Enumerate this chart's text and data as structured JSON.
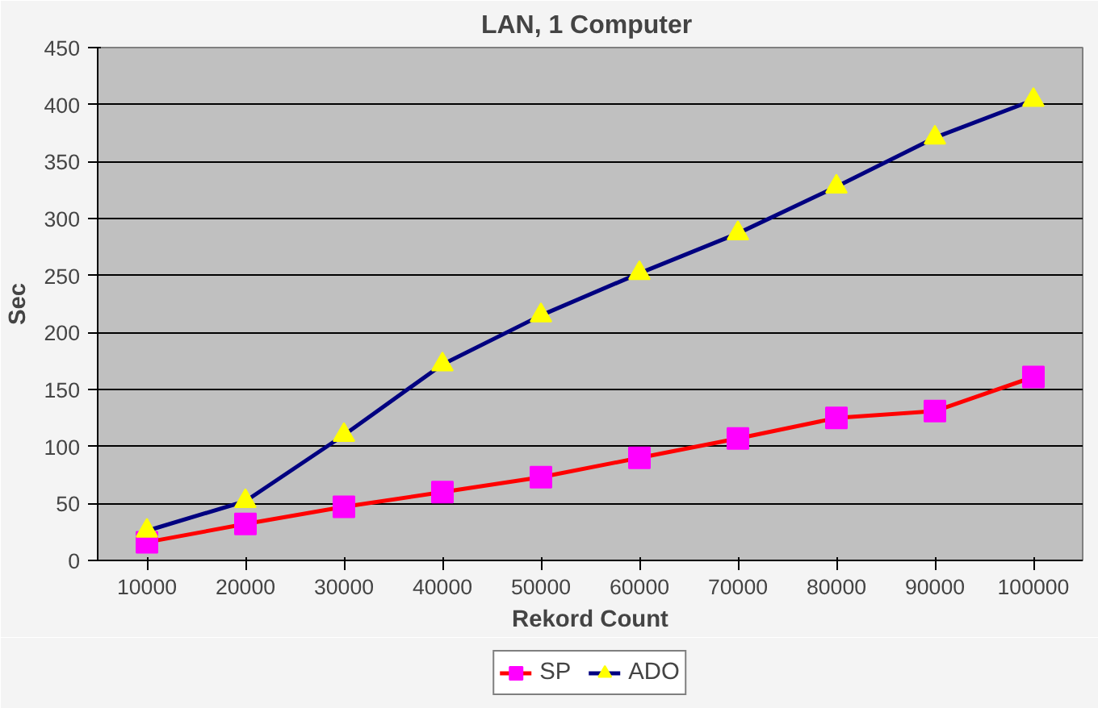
{
  "chart_data": {
    "type": "line",
    "title": "LAN,  1 Computer",
    "xlabel": "Rekord Count",
    "ylabel": "Sec",
    "categories": [
      "10000",
      "20000",
      "30000",
      "40000",
      "50000",
      "60000",
      "70000",
      "80000",
      "90000",
      "100000"
    ],
    "series": [
      {
        "name": "SP",
        "color": "#ff0000",
        "colors": [
          "#ff00ff",
          "#ff00ff",
          "#ff00ff",
          "#ff00ff",
          "#ff00ff",
          "#ff00ff",
          "#ff00ff",
          "#ff00ff",
          "#ff00ff",
          "#ff00ff"
        ],
        "marker": "square",
        "values": [
          16,
          32,
          47,
          60,
          73,
          90,
          107,
          125,
          131,
          161
        ]
      },
      {
        "name": "ADO",
        "color": "#000080",
        "colors": [
          "#ffff00",
          "#ffff00",
          "#ffff00",
          "#ffff00",
          "#ffff00",
          "#ffff00",
          "#ffff00",
          "#ffff00",
          "#ffff00",
          "#ffff00"
        ],
        "marker": "triangle",
        "values": [
          26,
          52,
          110,
          172,
          215,
          252,
          287,
          328,
          371,
          404
        ]
      }
    ],
    "ylim": [
      0,
      450
    ],
    "yticks": [
      0,
      50,
      100,
      150,
      200,
      250,
      300,
      350,
      400,
      450
    ],
    "grid": "y",
    "legend": "bottom"
  }
}
